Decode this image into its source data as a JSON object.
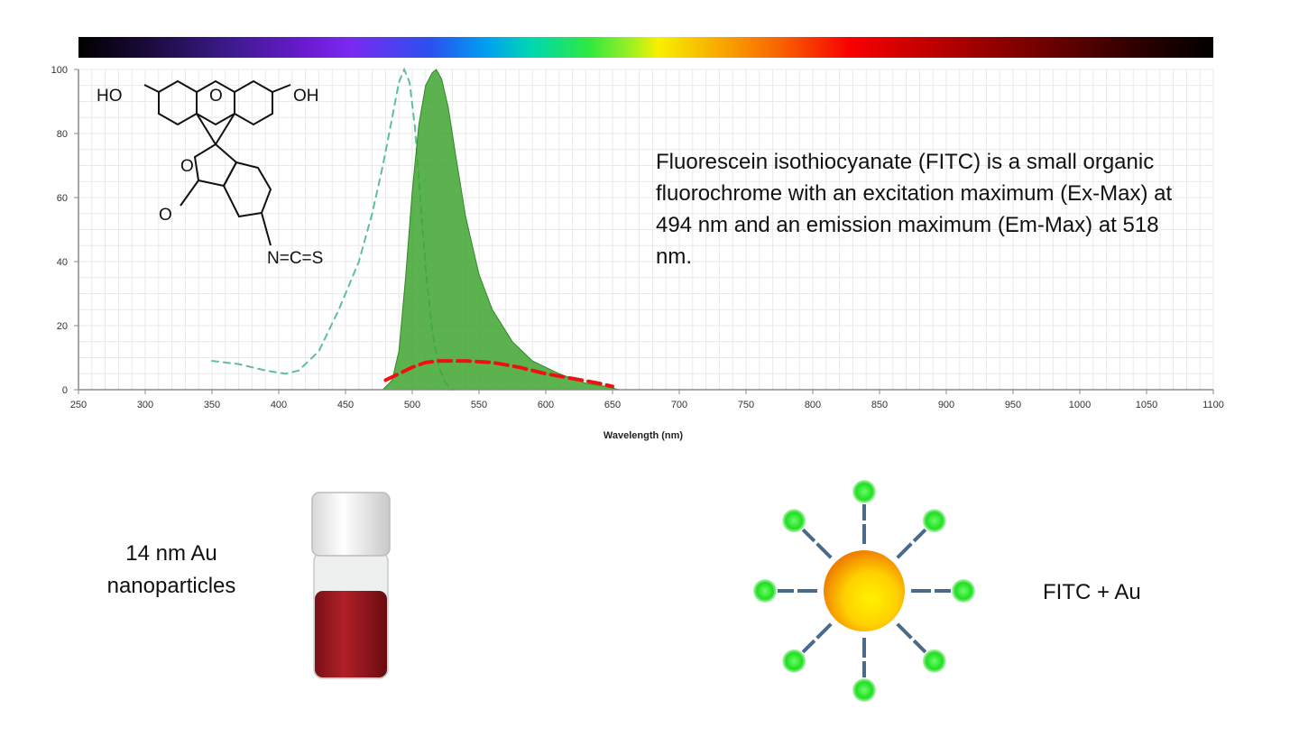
{
  "chart_data": {
    "type": "line",
    "title": "",
    "xlabel": "Wavelength (nm)",
    "ylabel": "",
    "xlim": [
      250,
      1100
    ],
    "ylim": [
      0,
      100
    ],
    "x_ticks": [
      250,
      300,
      350,
      400,
      450,
      500,
      550,
      600,
      650,
      700,
      750,
      800,
      850,
      900,
      950,
      1000,
      1050,
      1100
    ],
    "y_ticks": [
      0,
      20,
      40,
      60,
      80,
      100
    ],
    "grid": true,
    "series": [
      {
        "style": "dashed",
        "color": "#5fbf9a",
        "points": [
          [
            350,
            9
          ],
          [
            370,
            8
          ],
          [
            390,
            6
          ],
          [
            405,
            5
          ],
          [
            415,
            6
          ],
          [
            430,
            12
          ],
          [
            445,
            25
          ],
          [
            460,
            40
          ],
          [
            470,
            55
          ],
          [
            478,
            70
          ],
          [
            485,
            85
          ],
          [
            490,
            96
          ],
          [
            494,
            100
          ],
          [
            498,
            96
          ],
          [
            502,
            82
          ],
          [
            506,
            60
          ],
          [
            510,
            38
          ],
          [
            515,
            18
          ],
          [
            520,
            7
          ],
          [
            525,
            2
          ],
          [
            530,
            0
          ]
        ]
      },
      {
        "style": "filled",
        "color": "#3fa52f",
        "points": [
          [
            478,
            0
          ],
          [
            485,
            3
          ],
          [
            490,
            12
          ],
          [
            495,
            35
          ],
          [
            500,
            62
          ],
          [
            505,
            83
          ],
          [
            510,
            95
          ],
          [
            515,
            99
          ],
          [
            518,
            100
          ],
          [
            522,
            97
          ],
          [
            527,
            88
          ],
          [
            533,
            72
          ],
          [
            540,
            54
          ],
          [
            550,
            36
          ],
          [
            560,
            25
          ],
          [
            575,
            15
          ],
          [
            590,
            9
          ],
          [
            610,
            5
          ],
          [
            630,
            2
          ],
          [
            645,
            1
          ],
          [
            655,
            0
          ]
        ]
      },
      {
        "style": "dashed",
        "color": "#ee1111",
        "points": [
          [
            480,
            3
          ],
          [
            490,
            5
          ],
          [
            500,
            7
          ],
          [
            510,
            8.5
          ],
          [
            520,
            9
          ],
          [
            540,
            9
          ],
          [
            560,
            8.5
          ],
          [
            580,
            7
          ],
          [
            600,
            5
          ],
          [
            620,
            3.5
          ],
          [
            640,
            2
          ],
          [
            650,
            1
          ]
        ]
      }
    ]
  },
  "molecule": {
    "labels": [
      "HO",
      "O",
      "OH",
      "O",
      "O",
      "N=C=S"
    ]
  },
  "description": "Fluorescein isothiocyanate (FITC) is a small organic fluorochrome with an excitation maximum (Ex-Max) at 494 nm and an emission maximum (Em-Max) at 518 nm.",
  "vial": {
    "label_line1": "14 nm Au",
    "label_line2": "nanoparticles",
    "liquid_color": "#a01a20"
  },
  "conjugate": {
    "label": "FITC + Au",
    "core_color": "#f8c000",
    "dye_color": "#22dd22",
    "linker_color": "#4a6a8a"
  }
}
